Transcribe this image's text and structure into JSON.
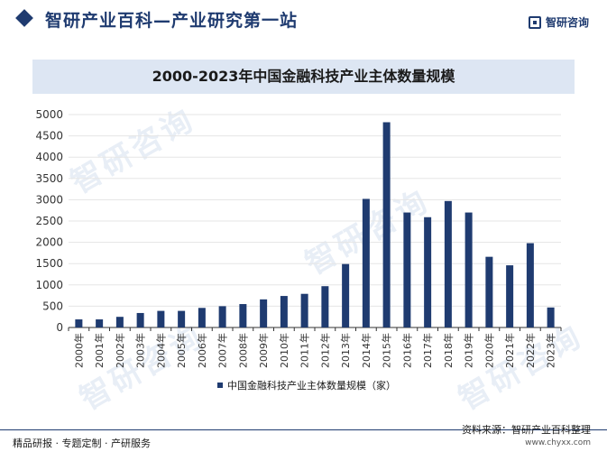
{
  "header": {
    "title": "智研产业百科—产业研究第一站",
    "ghost_text": "",
    "brand": "智研咨询"
  },
  "watermark_text": "智研咨询",
  "chart_data": {
    "type": "bar",
    "title": "2000-2023年中国金融科技产业主体数量规模",
    "categories": [
      "2000年",
      "2001年",
      "2002年",
      "2003年",
      "2004年",
      "2005年",
      "2006年",
      "2007年",
      "2008年",
      "2009年",
      "2010年",
      "2011年",
      "2012年",
      "2013年",
      "2014年",
      "2015年",
      "2016年",
      "2017年",
      "2018年",
      "2019年",
      "2020年",
      "2021年",
      "2022年",
      "2023年"
    ],
    "series": [
      {
        "name": "中国金融科技产业主体数量规模（家）",
        "values": [
          190,
          190,
          250,
          340,
          390,
          390,
          460,
          500,
          550,
          660,
          740,
          790,
          970,
          1490,
          3020,
          4820,
          2700,
          2590,
          2970,
          2700,
          1660,
          1460,
          1980,
          470
        ]
      }
    ],
    "ylim": [
      0,
      5000
    ],
    "yticks": [
      0,
      500,
      1000,
      1500,
      2000,
      2500,
      3000,
      3500,
      4000,
      4500,
      5000
    ],
    "grid": true,
    "legend_position": "bottom",
    "colors": {
      "bar": "#1f3b70",
      "grid": "#e5e5e5",
      "axis": "#333333"
    }
  },
  "footer": {
    "left": "精品研报 · 专题定制 · 产研服务",
    "source": "资料来源：智研产业百科整理",
    "url": "www.chyxx.com"
  }
}
